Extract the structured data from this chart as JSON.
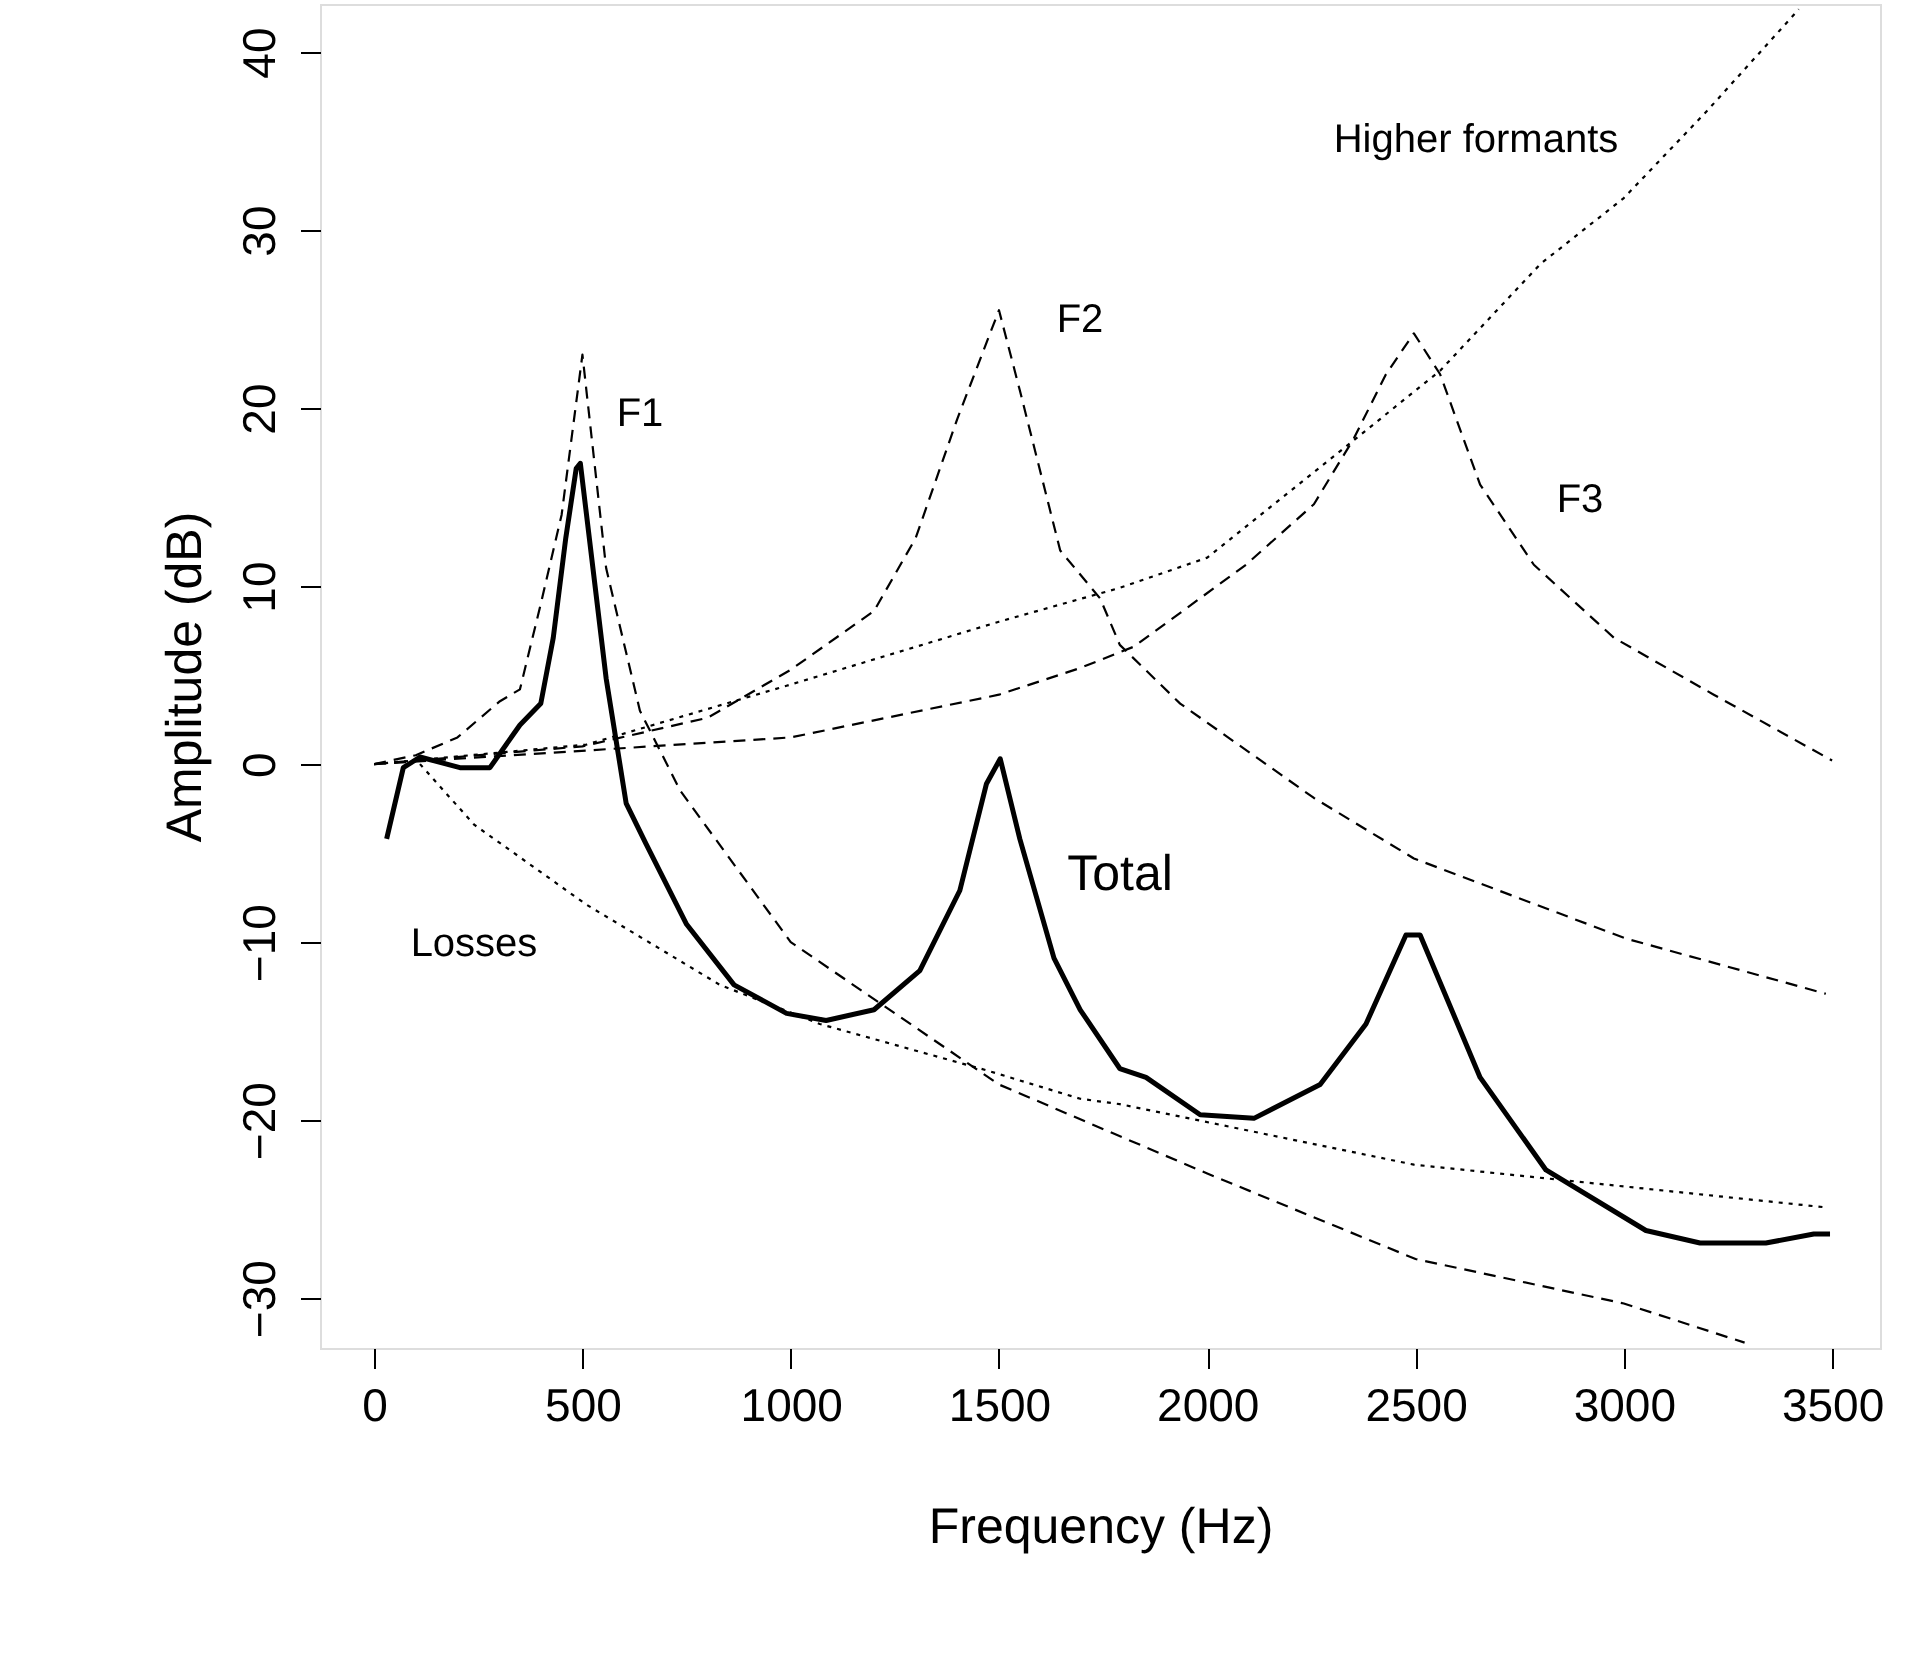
{
  "chart_data": {
    "type": "line",
    "xlabel": "Frequency (Hz)",
    "ylabel": "Amplitude (dB)",
    "xlim": [
      -130,
      3615
    ],
    "ylim": [
      -32.8,
      42.7
    ],
    "xticks": [
      0,
      500,
      1000,
      1500,
      2000,
      2500,
      3000,
      3500
    ],
    "yticks": [
      -30,
      -20,
      -10,
      0,
      10,
      20,
      30,
      40
    ],
    "grid": false,
    "marker": "none",
    "series": [
      {
        "color": "#000000",
        "line_style": "dashed",
        "x": [
          0,
          100,
          200,
          300,
          350,
          400,
          450,
          500,
          557,
          638,
          735,
          1000,
          1500,
          2000,
          2500,
          3000,
          3290
        ],
        "values": [
          0,
          0.5,
          1.5,
          3.5,
          4.2,
          9,
          14,
          23,
          11,
          3,
          -1.5,
          -10,
          -18,
          -23,
          -27.8,
          -30.3,
          -32.5
        ]
      },
      {
        "color": "#000000",
        "line_style": "dashed",
        "x": [
          0,
          500,
          800,
          1000,
          1200,
          1300,
          1400,
          1500,
          1550,
          1647,
          1743,
          1790,
          1935,
          2256,
          2496,
          3005,
          3485
        ],
        "values": [
          0,
          1,
          2.6,
          5.3,
          8.6,
          12.7,
          19.4,
          25.5,
          21,
          12,
          9.3,
          6.7,
          3.4,
          -1.9,
          -5.3,
          -9.8,
          -12.9
        ]
      },
      {
        "color": "#000000",
        "line_style": "dashed",
        "x": [
          0,
          1000,
          1500,
          1695,
          1824,
          2093,
          2256,
          2352,
          2429,
          2496,
          2559,
          2655,
          2784,
          2976,
          3216,
          3500
        ],
        "values": [
          0,
          1.5,
          3.9,
          5.4,
          6.6,
          11.2,
          14.6,
          18.3,
          21.9,
          24.2,
          21.9,
          15.7,
          11.2,
          7.1,
          3.9,
          0.2
        ]
      },
      {
        "color": "#000000",
        "line_style": "dotted",
        "x": [
          0,
          510,
          990,
          1500,
          1790,
          2000,
          2352,
          2559,
          2800,
          3000,
          3200,
          3420
        ],
        "values": [
          0,
          1.1,
          4.4,
          8,
          9.9,
          11.6,
          18.2,
          22.1,
          28.1,
          31.8,
          36.7,
          42.4
        ]
      },
      {
        "color": "#000000",
        "line_style": "dotted",
        "x": [
          110,
          240,
          510,
          830,
          1070,
          1470,
          1695,
          1790,
          2496,
          3485
        ],
        "values": [
          0,
          -3.4,
          -7.9,
          -12.4,
          -14.6,
          -17.2,
          -18.8,
          -19.1,
          -22.5,
          -24.9
        ]
      },
      {
        "color": "#000000",
        "line_style": "solid",
        "x": [
          30,
          70,
          110,
          206,
          278,
          350,
          400,
          430,
          460,
          485,
          495,
          557,
          605,
          653,
          750,
          864,
          990,
          1085,
          1200,
          1310,
          1406,
          1470,
          1503,
          1550,
          1632,
          1695,
          1790,
          1853,
          1983,
          2112,
          2271,
          2381,
          2477,
          2511,
          2655,
          2813,
          3053,
          3183,
          3341,
          3456,
          3495
        ],
        "values": [
          -4.2,
          -0.2,
          0.4,
          -0.2,
          -0.2,
          2.2,
          3.4,
          7.1,
          12.7,
          16.6,
          16.9,
          4.8,
          -2.2,
          -4.5,
          -9,
          -12.4,
          -14,
          -14.4,
          -13.8,
          -11.6,
          -7.1,
          -1.1,
          0.3,
          -4.2,
          -10.9,
          -13.8,
          -17.1,
          -17.6,
          -19.7,
          -19.9,
          -18,
          -14.6,
          -9.6,
          -9.6,
          -17.6,
          -22.8,
          -26.2,
          -26.9,
          -26.9,
          -26.4,
          -26.4
        ]
      }
    ],
    "annotations": [
      "F1",
      "F2",
      "F3",
      "Higher formants",
      "Losses",
      "Total"
    ]
  }
}
